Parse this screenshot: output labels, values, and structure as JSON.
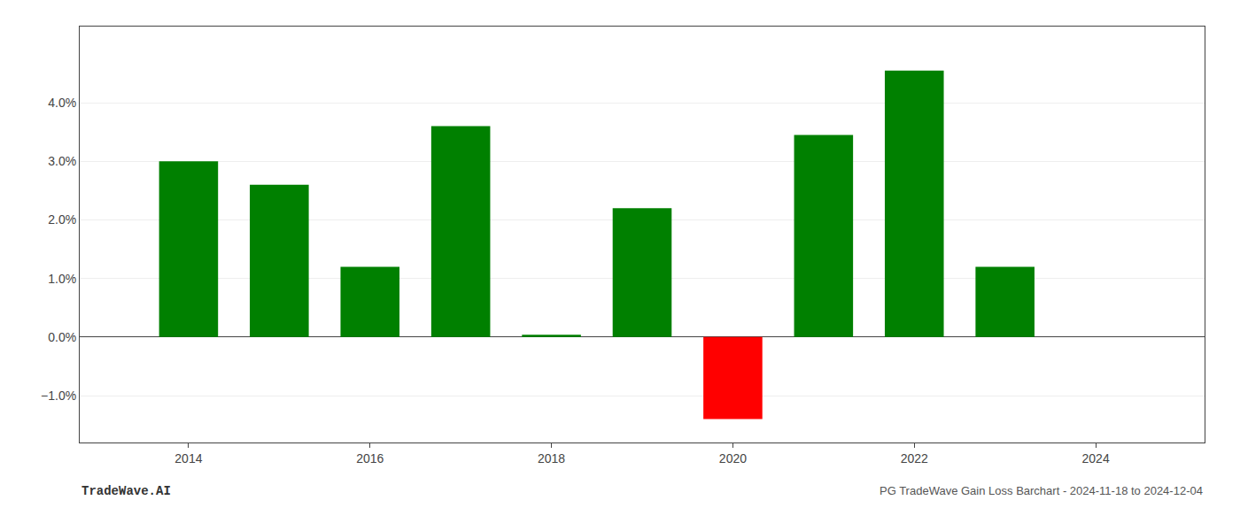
{
  "chart_data": {
    "type": "bar",
    "x": [
      2014,
      2015,
      2016,
      2017,
      2018,
      2019,
      2020,
      2021,
      2022,
      2023
    ],
    "values": [
      0.03,
      0.026,
      0.012,
      0.036,
      0.0004,
      0.022,
      -0.014,
      0.0345,
      0.0455,
      0.012
    ],
    "colors": [
      "#008000",
      "#008000",
      "#008000",
      "#008000",
      "#008000",
      "#008000",
      "#ff0000",
      "#008000",
      "#008000",
      "#008000"
    ],
    "xlim": [
      2012.8,
      2025.2
    ],
    "xticks": [
      2014,
      2016,
      2018,
      2020,
      2022,
      2024
    ],
    "ylim": [
      -0.018,
      0.053
    ],
    "yticks": [
      {
        "value": -0.01,
        "label": "−1.0%"
      },
      {
        "value": 0.0,
        "label": "0.0%"
      },
      {
        "value": 0.01,
        "label": "1.0%"
      },
      {
        "value": 0.02,
        "label": "2.0%"
      },
      {
        "value": 0.03,
        "label": "3.0%"
      },
      {
        "value": 0.04,
        "label": "4.0%"
      }
    ],
    "grid": true,
    "annotations": [
      "TradeWave.AI",
      "PG TradeWave Gain Loss Barchart - 2024-11-18 to 2024-12-04"
    ]
  }
}
